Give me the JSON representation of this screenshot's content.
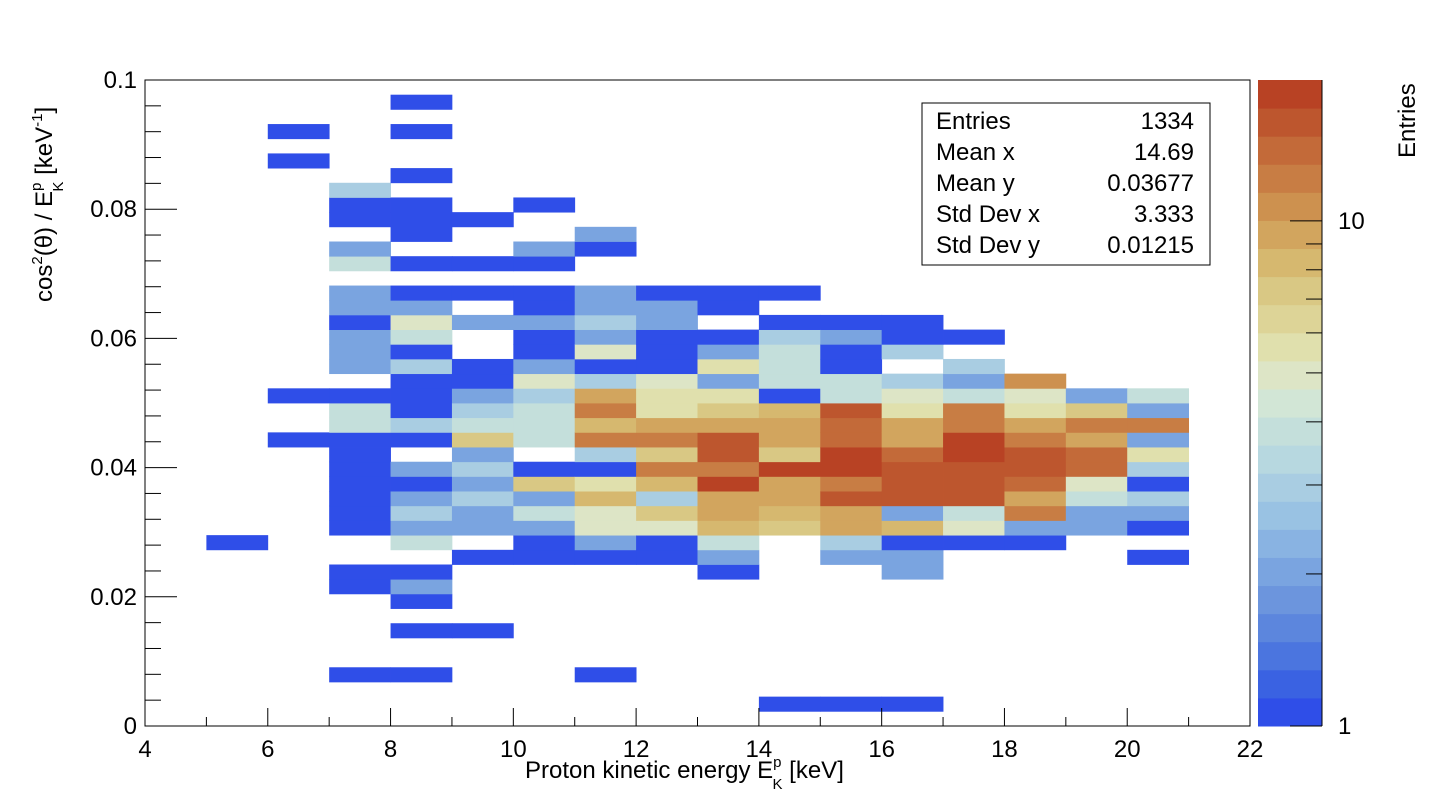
{
  "chart_data": {
    "type": "heatmap",
    "title": "",
    "xlabel": {
      "main": "Proton kinetic energy E",
      "sup": "p",
      "sub": "K",
      "unit": " [keV]"
    },
    "ylabel": {
      "pre": "cos",
      "sup1": "2",
      "mid": "(θ) / E",
      "sup2": "p",
      "sub2": "K",
      "unit_pre": "  [keV",
      "unit_sup": "-1",
      "unit_post": "]"
    },
    "xlim": [
      4,
      22
    ],
    "ylim": [
      0,
      0.1
    ],
    "x_tick_labels": [
      "4",
      "6",
      "8",
      "10",
      "12",
      "14",
      "16",
      "18",
      "20",
      "22"
    ],
    "y_tick_labels": [
      "0",
      "0.02",
      "0.04",
      "0.06",
      "0.08",
      "0.1"
    ],
    "bins": {
      "x_width": 1,
      "y_width": 0.0022727
    },
    "z_axis": {
      "label": "Entries",
      "scale": "log",
      "range": [
        1,
        19
      ],
      "tick_labels": [
        "1",
        "10"
      ],
      "palette": [
        "#2f4ee8",
        "#3a62e2",
        "#4b75df",
        "#5c86dd",
        "#6c95dd",
        "#7aa4e0",
        "#89b3e2",
        "#99c2e3",
        "#a9cde2",
        "#b7d8e0",
        "#c4dfdb",
        "#d2e6d6",
        "#dde5c6",
        "#e0e0ad",
        "#ddd497",
        "#d9c884",
        "#d6b86f",
        "#d2a55e",
        "#cd914f",
        "#c87d44",
        "#c36a39",
        "#bd562e",
        "#b84224"
      ]
    },
    "stats": [
      {
        "label": "Entries",
        "value": "1334"
      },
      {
        "label": "Mean x",
        "value": "14.69"
      },
      {
        "label": "Mean y",
        "value": "0.03677"
      },
      {
        "label": "Std Dev x",
        "value": "3.333"
      },
      {
        "label": "Std Dev y",
        "value": "0.01215"
      }
    ],
    "cells": [
      [
        5,
        12,
        1
      ],
      [
        6,
        19,
        1
      ],
      [
        6,
        22,
        1
      ],
      [
        6,
        38,
        1
      ],
      [
        6,
        40,
        1
      ],
      [
        7,
        3,
        1
      ],
      [
        7,
        9,
        1
      ],
      [
        7,
        10,
        1
      ],
      [
        7,
        13,
        1
      ],
      [
        7,
        14,
        1
      ],
      [
        7,
        15,
        1
      ],
      [
        7,
        16,
        1
      ],
      [
        7,
        17,
        1
      ],
      [
        7,
        18,
        1
      ],
      [
        7,
        19,
        1
      ],
      [
        7,
        20,
        4
      ],
      [
        7,
        21,
        4
      ],
      [
        7,
        22,
        1
      ],
      [
        7,
        24,
        2
      ],
      [
        7,
        25,
        2
      ],
      [
        7,
        26,
        2
      ],
      [
        7,
        27,
        1
      ],
      [
        7,
        28,
        2
      ],
      [
        7,
        29,
        2
      ],
      [
        7,
        31,
        4
      ],
      [
        7,
        32,
        2
      ],
      [
        7,
        34,
        1
      ],
      [
        7,
        35,
        1
      ],
      [
        7,
        36,
        3
      ],
      [
        8,
        3,
        1
      ],
      [
        8,
        6,
        1
      ],
      [
        8,
        8,
        1
      ],
      [
        8,
        9,
        2
      ],
      [
        8,
        10,
        1
      ],
      [
        8,
        12,
        4
      ],
      [
        8,
        13,
        2
      ],
      [
        8,
        14,
        3
      ],
      [
        8,
        15,
        2
      ],
      [
        8,
        16,
        1
      ],
      [
        8,
        17,
        2
      ],
      [
        8,
        19,
        1
      ],
      [
        8,
        20,
        3
      ],
      [
        8,
        21,
        1
      ],
      [
        8,
        22,
        1
      ],
      [
        8,
        23,
        1
      ],
      [
        8,
        24,
        3
      ],
      [
        8,
        25,
        1
      ],
      [
        8,
        26,
        4
      ],
      [
        8,
        27,
        5
      ],
      [
        8,
        28,
        2
      ],
      [
        8,
        29,
        1
      ],
      [
        8,
        31,
        1
      ],
      [
        8,
        33,
        1
      ],
      [
        8,
        34,
        1
      ],
      [
        8,
        35,
        1
      ],
      [
        8,
        37,
        1
      ],
      [
        8,
        40,
        1
      ],
      [
        8,
        42,
        1
      ],
      [
        9,
        6,
        1
      ],
      [
        9,
        11,
        1
      ],
      [
        9,
        13,
        2
      ],
      [
        9,
        14,
        2
      ],
      [
        9,
        15,
        3
      ],
      [
        9,
        16,
        2
      ],
      [
        9,
        17,
        3
      ],
      [
        9,
        18,
        2
      ],
      [
        9,
        19,
        7
      ],
      [
        9,
        20,
        4
      ],
      [
        9,
        21,
        3
      ],
      [
        9,
        22,
        2
      ],
      [
        9,
        23,
        1
      ],
      [
        9,
        24,
        1
      ],
      [
        9,
        27,
        2
      ],
      [
        9,
        29,
        1
      ],
      [
        9,
        31,
        1
      ],
      [
        9,
        34,
        1
      ],
      [
        10,
        11,
        1
      ],
      [
        10,
        12,
        1
      ],
      [
        10,
        13,
        2
      ],
      [
        10,
        14,
        4
      ],
      [
        10,
        15,
        2
      ],
      [
        10,
        16,
        7
      ],
      [
        10,
        17,
        1
      ],
      [
        10,
        19,
        4
      ],
      [
        10,
        20,
        4
      ],
      [
        10,
        21,
        4
      ],
      [
        10,
        22,
        3
      ],
      [
        10,
        23,
        5
      ],
      [
        10,
        24,
        2
      ],
      [
        10,
        25,
        1
      ],
      [
        10,
        26,
        1
      ],
      [
        10,
        27,
        2
      ],
      [
        10,
        28,
        1
      ],
      [
        10,
        29,
        1
      ],
      [
        10,
        31,
        1
      ],
      [
        10,
        32,
        2
      ],
      [
        10,
        35,
        1
      ],
      [
        11,
        3,
        1
      ],
      [
        11,
        11,
        1
      ],
      [
        11,
        12,
        2
      ],
      [
        11,
        13,
        5
      ],
      [
        11,
        14,
        5
      ],
      [
        11,
        15,
        8
      ],
      [
        11,
        16,
        6
      ],
      [
        11,
        17,
        1
      ],
      [
        11,
        18,
        3
      ],
      [
        11,
        19,
        12
      ],
      [
        11,
        20,
        8
      ],
      [
        11,
        21,
        12
      ],
      [
        11,
        22,
        9
      ],
      [
        11,
        23,
        3
      ],
      [
        11,
        24,
        1
      ],
      [
        11,
        25,
        5
      ],
      [
        11,
        26,
        2
      ],
      [
        11,
        27,
        3
      ],
      [
        11,
        28,
        2
      ],
      [
        11,
        29,
        2
      ],
      [
        11,
        32,
        1
      ],
      [
        11,
        33,
        2
      ],
      [
        12,
        11,
        1
      ],
      [
        12,
        12,
        1
      ],
      [
        12,
        13,
        5
      ],
      [
        12,
        14,
        7
      ],
      [
        12,
        15,
        3
      ],
      [
        12,
        16,
        8
      ],
      [
        12,
        17,
        12
      ],
      [
        12,
        18,
        7
      ],
      [
        12,
        19,
        12
      ],
      [
        12,
        20,
        9
      ],
      [
        12,
        21,
        6
      ],
      [
        12,
        22,
        6
      ],
      [
        12,
        23,
        5
      ],
      [
        12,
        24,
        1
      ],
      [
        12,
        25,
        1
      ],
      [
        12,
        26,
        1
      ],
      [
        12,
        27,
        2
      ],
      [
        12,
        28,
        2
      ],
      [
        12,
        29,
        1
      ],
      [
        13,
        10,
        1
      ],
      [
        13,
        11,
        2
      ],
      [
        13,
        12,
        4
      ],
      [
        13,
        13,
        8
      ],
      [
        13,
        14,
        10
      ],
      [
        13,
        15,
        10
      ],
      [
        13,
        16,
        17
      ],
      [
        13,
        17,
        12
      ],
      [
        13,
        18,
        15
      ],
      [
        13,
        19,
        15
      ],
      [
        13,
        20,
        9
      ],
      [
        13,
        21,
        7
      ],
      [
        13,
        22,
        6
      ],
      [
        13,
        23,
        2
      ],
      [
        13,
        24,
        6
      ],
      [
        13,
        25,
        2
      ],
      [
        13,
        26,
        1
      ],
      [
        13,
        28,
        1
      ],
      [
        13,
        29,
        1
      ],
      [
        14,
        1,
        1
      ],
      [
        14,
        13,
        7
      ],
      [
        14,
        14,
        8
      ],
      [
        14,
        15,
        10
      ],
      [
        14,
        16,
        10
      ],
      [
        14,
        17,
        19
      ],
      [
        14,
        18,
        7
      ],
      [
        14,
        19,
        10
      ],
      [
        14,
        20,
        10
      ],
      [
        14,
        21,
        8
      ],
      [
        14,
        22,
        1
      ],
      [
        14,
        23,
        4
      ],
      [
        14,
        24,
        4
      ],
      [
        14,
        25,
        4
      ],
      [
        14,
        26,
        3
      ],
      [
        14,
        27,
        1
      ],
      [
        14,
        29,
        1
      ],
      [
        15,
        1,
        1
      ],
      [
        15,
        11,
        2
      ],
      [
        15,
        12,
        3
      ],
      [
        15,
        13,
        9
      ],
      [
        15,
        14,
        10
      ],
      [
        15,
        15,
        16
      ],
      [
        15,
        16,
        12
      ],
      [
        15,
        17,
        18
      ],
      [
        15,
        18,
        19
      ],
      [
        15,
        19,
        14
      ],
      [
        15,
        20,
        14
      ],
      [
        15,
        21,
        15
      ],
      [
        15,
        22,
        4
      ],
      [
        15,
        23,
        4
      ],
      [
        15,
        24,
        1
      ],
      [
        15,
        25,
        1
      ],
      [
        15,
        26,
        2
      ],
      [
        15,
        27,
        1
      ],
      [
        16,
        1,
        1
      ],
      [
        16,
        10,
        2
      ],
      [
        16,
        11,
        2
      ],
      [
        16,
        12,
        1
      ],
      [
        16,
        13,
        8
      ],
      [
        16,
        14,
        2
      ],
      [
        16,
        15,
        15
      ],
      [
        16,
        16,
        16
      ],
      [
        16,
        17,
        16
      ],
      [
        16,
        18,
        14
      ],
      [
        16,
        19,
        9
      ],
      [
        16,
        20,
        9
      ],
      [
        16,
        21,
        6
      ],
      [
        16,
        22,
        5
      ],
      [
        16,
        23,
        3
      ],
      [
        16,
        25,
        3
      ],
      [
        16,
        26,
        1
      ],
      [
        16,
        27,
        1
      ],
      [
        17,
        12,
        1
      ],
      [
        17,
        13,
        5
      ],
      [
        17,
        14,
        4
      ],
      [
        17,
        15,
        16
      ],
      [
        17,
        16,
        16
      ],
      [
        17,
        17,
        15
      ],
      [
        17,
        18,
        17
      ],
      [
        17,
        19,
        18
      ],
      [
        17,
        20,
        12
      ],
      [
        17,
        21,
        12
      ],
      [
        17,
        22,
        4
      ],
      [
        17,
        23,
        2
      ],
      [
        17,
        24,
        3
      ],
      [
        17,
        26,
        1
      ],
      [
        18,
        12,
        1
      ],
      [
        18,
        13,
        2
      ],
      [
        18,
        14,
        12
      ],
      [
        18,
        15,
        10
      ],
      [
        18,
        16,
        14
      ],
      [
        18,
        17,
        16
      ],
      [
        18,
        18,
        15
      ],
      [
        18,
        19,
        12
      ],
      [
        18,
        20,
        10
      ],
      [
        18,
        21,
        6
      ],
      [
        18,
        22,
        5
      ],
      [
        18,
        23,
        11
      ],
      [
        19,
        13,
        2
      ],
      [
        19,
        14,
        2
      ],
      [
        19,
        15,
        4
      ],
      [
        19,
        16,
        5
      ],
      [
        19,
        17,
        14
      ],
      [
        19,
        18,
        14
      ],
      [
        19,
        19,
        10
      ],
      [
        19,
        20,
        12
      ],
      [
        19,
        21,
        7
      ],
      [
        19,
        22,
        2
      ],
      [
        20,
        11,
        1
      ],
      [
        20,
        13,
        1
      ],
      [
        20,
        14,
        2
      ],
      [
        20,
        15,
        3
      ],
      [
        20,
        16,
        1
      ],
      [
        20,
        17,
        3
      ],
      [
        20,
        18,
        6
      ],
      [
        20,
        19,
        2
      ],
      [
        20,
        20,
        12
      ],
      [
        20,
        21,
        2
      ],
      [
        20,
        22,
        4
      ]
    ]
  }
}
